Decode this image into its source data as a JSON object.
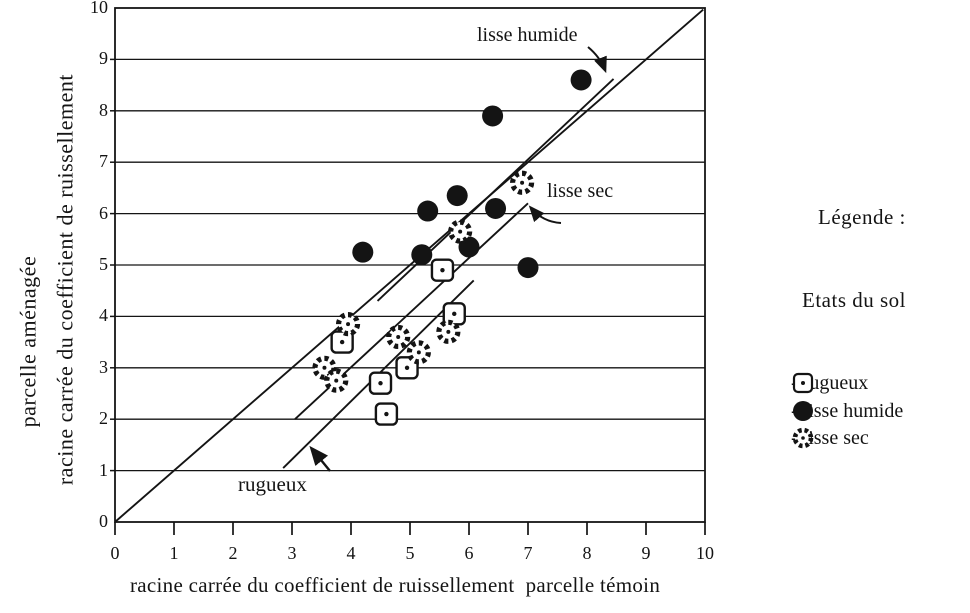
{
  "figure": {
    "y_axis_label_outer": "parcelle aménagée",
    "y_axis_label_inner": "racine carrée du coefficient de ruissellement",
    "x_axis_label": "racine carrée du coefficient de ruissellement  parcelle témoin"
  },
  "legend": {
    "title": "Légende :",
    "subtitle": "Etats du sol",
    "items": [
      {
        "icon": "square-dot-marker",
        "label": "- rugueux"
      },
      {
        "icon": "filled-circle-marker",
        "label": "- lisse humide"
      },
      {
        "icon": "dotted-circle-marker",
        "label": "- lisse sec"
      }
    ]
  },
  "chart_data": {
    "type": "scatter",
    "title": "",
    "xlabel": "racine carrée du coefficient de ruissellement  parcelle témoin",
    "ylabel": "racine carrée du coefficient de ruissellement (parcelle aménagée)",
    "xlim": [
      0,
      10
    ],
    "ylim": [
      0,
      10
    ],
    "x_ticks": [
      0,
      1,
      2,
      3,
      4,
      5,
      6,
      7,
      8,
      9,
      10
    ],
    "y_ticks": [
      0,
      1,
      2,
      3,
      4,
      5,
      6,
      7,
      8,
      9,
      10
    ],
    "grid": "horizontal-only",
    "legend_position": "right-outside",
    "ink_color": "#141414",
    "background_color": "#ffffff",
    "series": [
      {
        "name": "rugueux",
        "marker": "square-dot",
        "points": [
          [
            5.55,
            4.9
          ],
          [
            5.75,
            4.05
          ],
          [
            3.85,
            3.5
          ],
          [
            4.95,
            3.0
          ],
          [
            4.5,
            2.7
          ],
          [
            4.6,
            2.1
          ]
        ]
      },
      {
        "name": "lisse humide",
        "marker": "filled-circle",
        "points": [
          [
            7.9,
            8.6
          ],
          [
            6.4,
            7.9
          ],
          [
            5.8,
            6.35
          ],
          [
            5.3,
            6.05
          ],
          [
            6.45,
            6.1
          ],
          [
            4.2,
            5.25
          ],
          [
            5.2,
            5.2
          ],
          [
            6.0,
            5.35
          ],
          [
            7.0,
            4.95
          ]
        ]
      },
      {
        "name": "lisse sec",
        "marker": "dotted-circle",
        "points": [
          [
            6.9,
            6.6
          ],
          [
            5.85,
            5.65
          ],
          [
            3.95,
            3.85
          ],
          [
            4.8,
            3.6
          ],
          [
            5.65,
            3.7
          ],
          [
            5.15,
            3.3
          ],
          [
            3.55,
            3.0
          ],
          [
            3.75,
            2.75
          ]
        ]
      }
    ],
    "lines": [
      {
        "name": "identity-1-1",
        "from": [
          0,
          0
        ],
        "to": [
          9.97,
          9.97
        ]
      },
      {
        "name": "fit-lisse-humide",
        "from": [
          4.45,
          4.3
        ],
        "to": [
          8.45,
          8.62
        ]
      },
      {
        "name": "fit-lisse-sec",
        "from": [
          3.05,
          2.0
        ],
        "to": [
          7.0,
          6.2
        ]
      },
      {
        "name": "fit-rugueux",
        "from": [
          2.85,
          1.05
        ],
        "to": [
          6.08,
          4.7
        ]
      }
    ],
    "annotations": {
      "humide": {
        "label": "lisse humide"
      },
      "sec": {
        "label": "lisse sec"
      },
      "rugueux": {
        "label": "rugueux"
      }
    }
  }
}
